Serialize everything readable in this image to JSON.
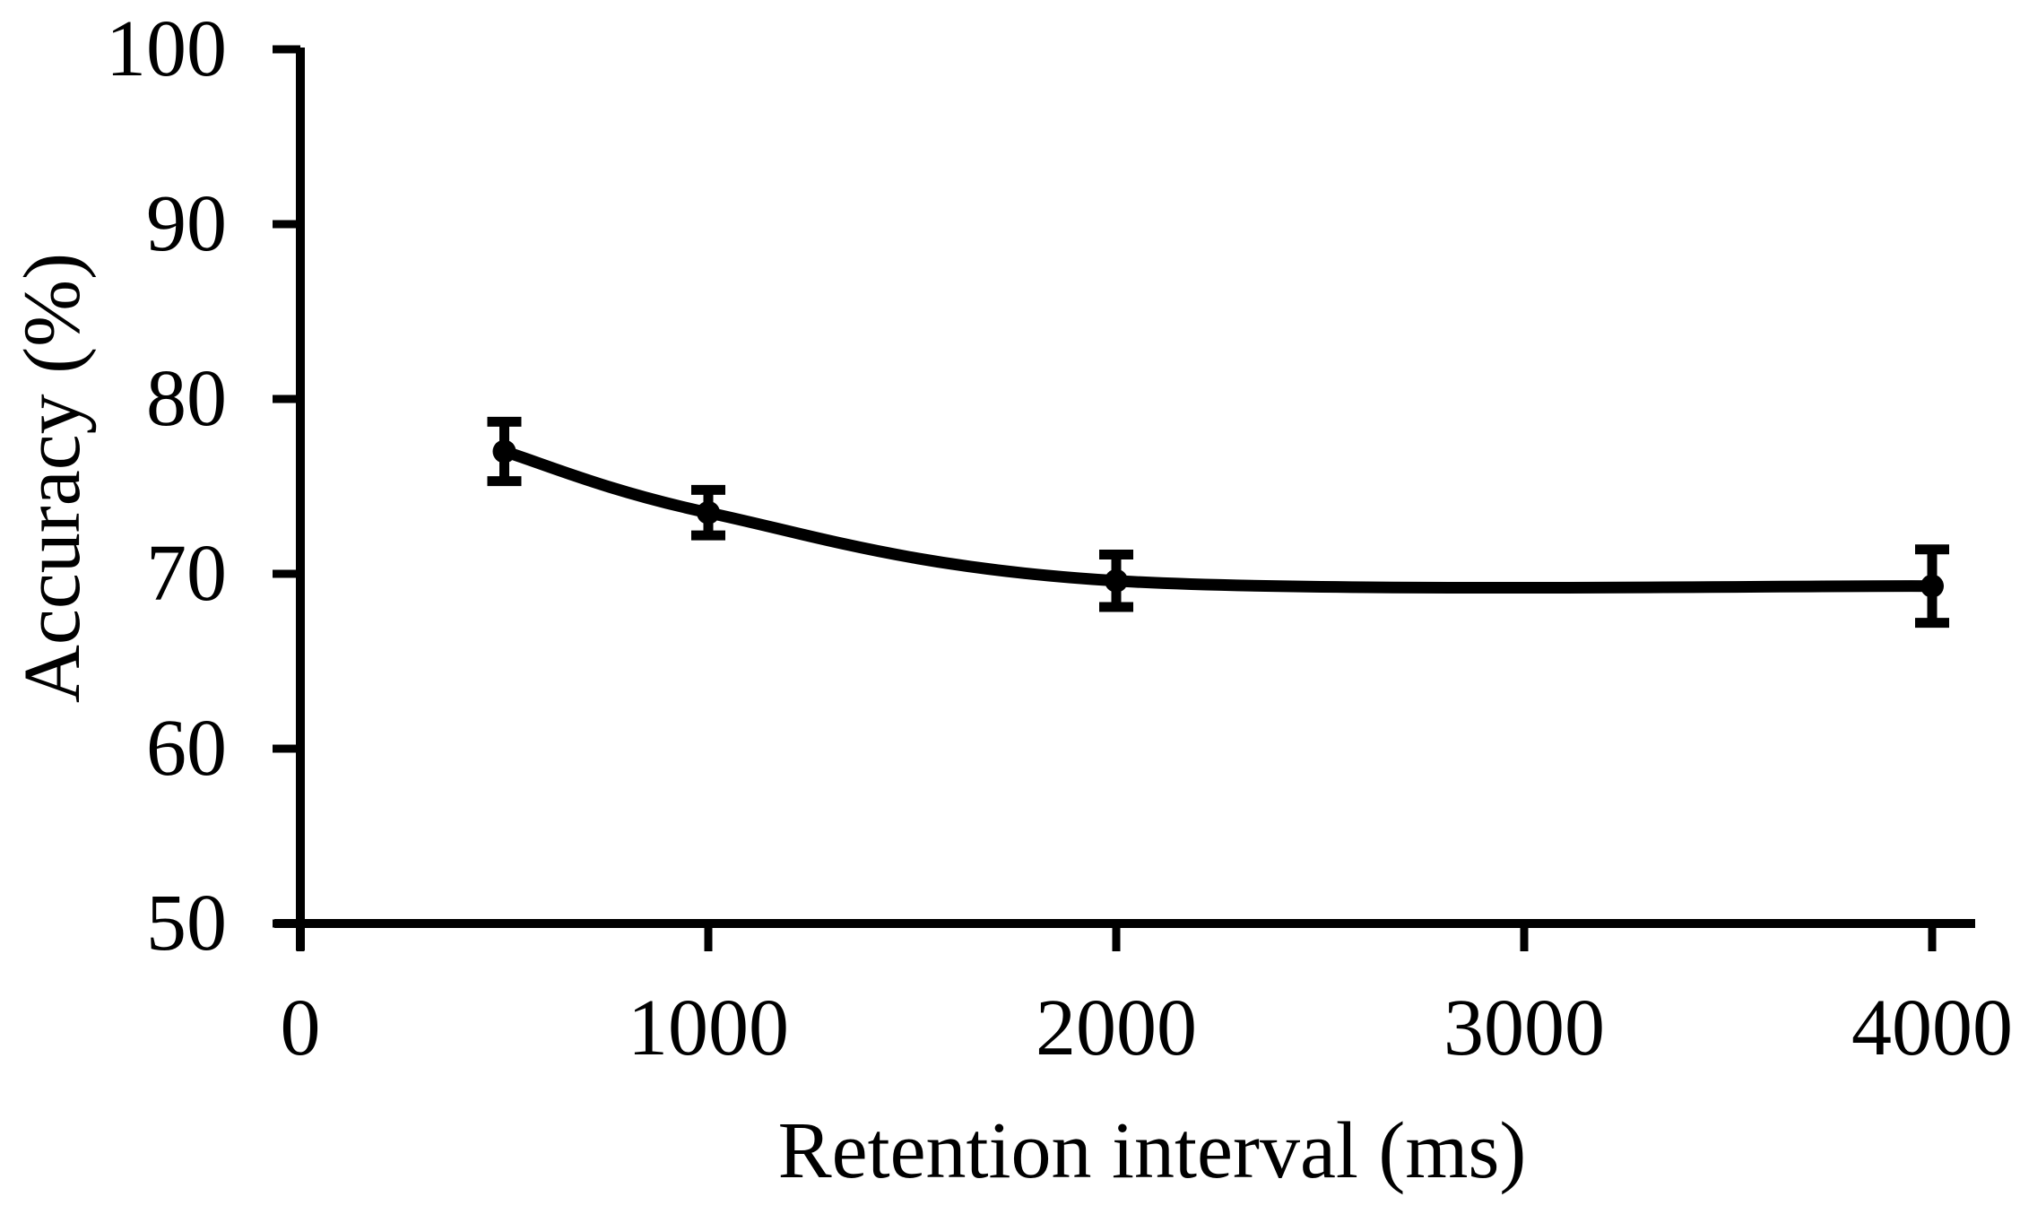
{
  "figure": {
    "background_color": "#ffffff",
    "ink_color": "#000000",
    "title": ""
  },
  "chart_data": {
    "type": "line",
    "title": "",
    "xlabel": "Retention interval (ms)",
    "ylabel": "Accuracy (%)",
    "x": [
      500,
      1000,
      2000,
      4000
    ],
    "y": [
      77.0,
      73.5,
      69.6,
      69.3
    ],
    "y_error": [
      1.7,
      1.3,
      1.5,
      2.1
    ],
    "xticks": [
      0,
      1000,
      2000,
      3000,
      4000
    ],
    "xtick_labels": [
      "0",
      "1000",
      "2000",
      "3000",
      "4000"
    ],
    "yticks": [
      50,
      60,
      70,
      80,
      90,
      100
    ],
    "ytick_labels": [
      "50",
      "60",
      "70",
      "80",
      "90",
      "100"
    ],
    "xlim": [
      0,
      4000
    ],
    "ylim": [
      50,
      100
    ],
    "grid": false,
    "legend_position": "none",
    "line_color": "#000000",
    "marker": "filled-circle",
    "marker_color": "#000000",
    "error_bar_color": "#000000",
    "smoothed": true
  }
}
